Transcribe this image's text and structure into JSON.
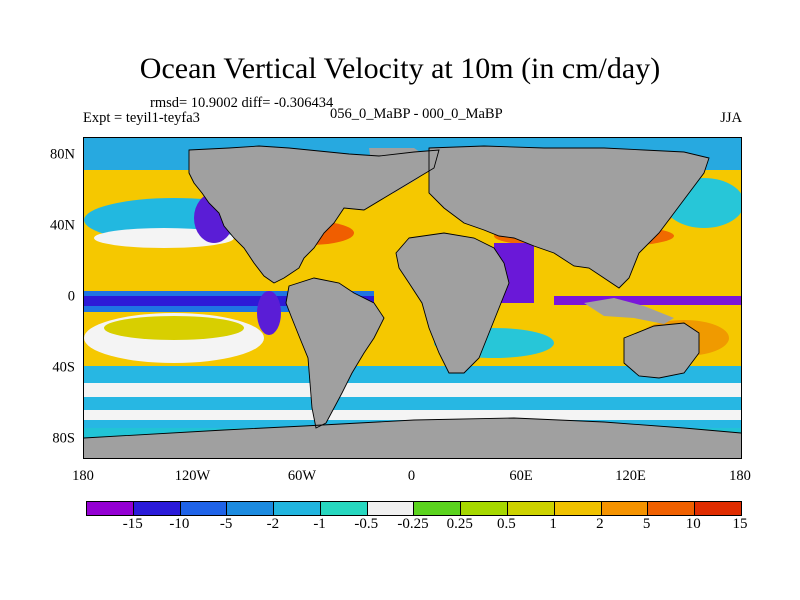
{
  "title": "Ocean Vertical Velocity at 10m (in cm/day)",
  "stats_text": "rmsd= 10.9002 diff= -0.306434",
  "experiment_text": "Expt = teyil1-teyfa3",
  "period_text": "056_0_MaBP - 000_0_MaBP",
  "season": "JJA",
  "map": {
    "x_range": [
      -180,
      180
    ],
    "y_range": [
      -90,
      90
    ],
    "x_ticks": [
      {
        "value": -180,
        "label": "180"
      },
      {
        "value": -120,
        "label": "120W"
      },
      {
        "value": -60,
        "label": "60W"
      },
      {
        "value": 0,
        "label": "0"
      },
      {
        "value": 60,
        "label": "60E"
      },
      {
        "value": 120,
        "label": "120E"
      },
      {
        "value": 180,
        "label": "180"
      }
    ],
    "y_ticks": [
      {
        "value": 80,
        "label": "80N"
      },
      {
        "value": 40,
        "label": "40N"
      },
      {
        "value": 0,
        "label": "0"
      },
      {
        "value": -40,
        "label": "40S"
      },
      {
        "value": -80,
        "label": "80S"
      }
    ],
    "land_color": "#a0a0a0",
    "background_color": "#f5c800"
  },
  "colorbar": {
    "colors": [
      "#9400d3",
      "#2b1bd9",
      "#1f63e8",
      "#1c8be0",
      "#21b5df",
      "#27d7bf",
      "#f0f0f0",
      "#5bd31e",
      "#a6d800",
      "#cdd200",
      "#f0c200",
      "#f59300",
      "#f06000",
      "#e02c00"
    ],
    "labels": [
      "-15",
      "-10",
      "-5",
      "-2",
      "-1",
      "-0.5",
      "-0.25",
      "0.25",
      "0.5",
      "1",
      "2",
      "5",
      "10",
      "15"
    ]
  }
}
